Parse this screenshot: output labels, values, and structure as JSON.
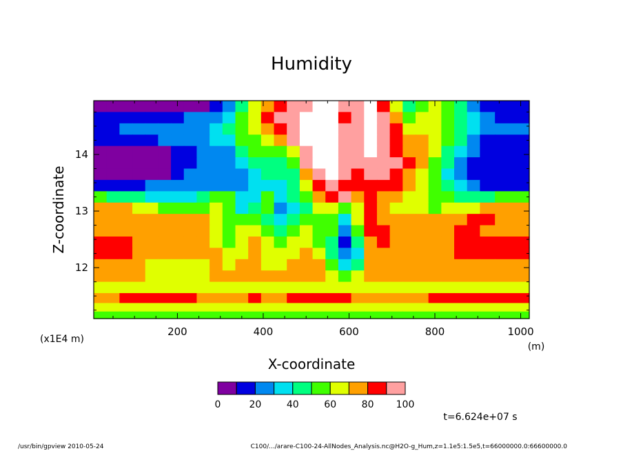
{
  "chart_data": {
    "type": "heatmap",
    "title": "Humidity",
    "xlabel": "X-coordinate",
    "ylabel": "Z-coordinate",
    "x_unit": "(m)",
    "y_unit": "(x1E4 m)",
    "xlim": [
      5,
      1020
    ],
    "ylim": [
      11.1,
      14.95
    ],
    "x_ticks": [
      200,
      400,
      600,
      800,
      1000
    ],
    "y_ticks": [
      12,
      13,
      14
    ],
    "x_tick_labels": [
      "200",
      "400",
      "600",
      "800",
      "1000"
    ],
    "y_tick_labels": [
      "12",
      "13",
      "14"
    ],
    "colorbar": {
      "levels": [
        0,
        10,
        20,
        30,
        40,
        50,
        60,
        70,
        80,
        90,
        100
      ],
      "labels": [
        "0",
        "20",
        "40",
        "60",
        "80",
        "100"
      ],
      "label_values": [
        0,
        20,
        40,
        60,
        80,
        100
      ],
      "colors": [
        "#7f00a0",
        "#0000e0",
        "#0088f0",
        "#00e0f0",
        "#00ff80",
        "#40ff00",
        "#e0ff00",
        "#ffa000",
        "#ff0000",
        "#ffa0a0"
      ],
      "above_color": "#ffffff"
    },
    "z_rows": [
      {
        "z": 14.85,
        "values": [
          5,
          5,
          5,
          5,
          5,
          5,
          5,
          5,
          5,
          12,
          25,
          45,
          65,
          75,
          85,
          95,
          98,
          100,
          100,
          90,
          98,
          100,
          85,
          60,
          45,
          55,
          60,
          55,
          45,
          25,
          15,
          12
        ]
      },
      {
        "z": 14.65,
        "values": [
          12,
          12,
          15,
          18,
          15,
          15,
          18,
          20,
          22,
          25,
          35,
          55,
          65,
          80,
          90,
          95,
          100,
          100,
          100,
          85,
          95,
          100,
          90,
          70,
          55,
          60,
          65,
          55,
          45,
          35,
          25,
          15
        ]
      },
      {
        "z": 14.45,
        "values": [
          18,
          18,
          20,
          22,
          22,
          22,
          25,
          25,
          28,
          32,
          40,
          55,
          60,
          75,
          85,
          95,
          100,
          100,
          100,
          90,
          95,
          100,
          92,
          80,
          65,
          65,
          68,
          55,
          45,
          35,
          25,
          20
        ]
      },
      {
        "z": 14.25,
        "values": [
          15,
          15,
          15,
          18,
          18,
          20,
          22,
          25,
          28,
          30,
          38,
          50,
          55,
          65,
          75,
          90,
          100,
          100,
          100,
          95,
          98,
          100,
          95,
          85,
          75,
          70,
          65,
          55,
          40,
          25,
          18,
          15
        ]
      },
      {
        "z": 14.05,
        "values": [
          8,
          8,
          5,
          5,
          5,
          5,
          10,
          18,
          22,
          22,
          25,
          40,
          50,
          55,
          55,
          65,
          95,
          100,
          100,
          95,
          98,
          100,
          95,
          85,
          75,
          70,
          60,
          45,
          30,
          20,
          15,
          12
        ]
      },
      {
        "z": 13.85,
        "values": [
          5,
          5,
          5,
          5,
          5,
          5,
          12,
          18,
          22,
          22,
          25,
          30,
          40,
          45,
          45,
          55,
          90,
          100,
          100,
          95,
          90,
          98,
          95,
          90,
          80,
          70,
          55,
          40,
          28,
          18,
          15,
          12
        ]
      },
      {
        "z": 13.65,
        "values": [
          5,
          5,
          5,
          5,
          5,
          8,
          15,
          20,
          22,
          22,
          25,
          25,
          35,
          40,
          40,
          45,
          75,
          95,
          100,
          92,
          85,
          92,
          90,
          85,
          75,
          65,
          52,
          38,
          25,
          15,
          12,
          10
        ]
      },
      {
        "z": 13.45,
        "values": [
          15,
          15,
          15,
          18,
          20,
          20,
          22,
          22,
          25,
          25,
          28,
          28,
          30,
          32,
          35,
          45,
          62,
          80,
          95,
          88,
          80,
          85,
          85,
          80,
          70,
          60,
          50,
          40,
          30,
          20,
          15,
          15
        ]
      },
      {
        "z": 13.25,
        "values": [
          52,
          48,
          45,
          40,
          38,
          35,
          32,
          32,
          40,
          55,
          55,
          35,
          38,
          55,
          30,
          40,
          55,
          70,
          80,
          90,
          75,
          82,
          78,
          72,
          68,
          60,
          55,
          50,
          48,
          48,
          45,
          52
        ]
      },
      {
        "z": 13.05,
        "values": [
          75,
          75,
          70,
          65,
          60,
          55,
          50,
          50,
          58,
          60,
          52,
          35,
          40,
          52,
          22,
          35,
          48,
          62,
          65,
          55,
          62,
          80,
          72,
          68,
          62,
          60,
          58,
          60,
          62,
          68,
          72,
          75
        ]
      },
      {
        "z": 12.85,
        "values": [
          78,
          78,
          75,
          75,
          72,
          72,
          70,
          70,
          72,
          65,
          55,
          50,
          52,
          45,
          35,
          45,
          52,
          58,
          58,
          35,
          62,
          80,
          75,
          72,
          70,
          70,
          72,
          75,
          78,
          80,
          80,
          78
        ]
      },
      {
        "z": 12.65,
        "values": [
          75,
          75,
          75,
          72,
          72,
          72,
          72,
          75,
          70,
          68,
          55,
          62,
          68,
          58,
          45,
          55,
          62,
          58,
          50,
          22,
          50,
          82,
          80,
          75,
          72,
          72,
          75,
          78,
          80,
          80,
          78,
          75
        ]
      },
      {
        "z": 12.45,
        "values": [
          85,
          88,
          85,
          78,
          72,
          72,
          72,
          72,
          70,
          68,
          58,
          65,
          70,
          60,
          55,
          62,
          65,
          58,
          45,
          15,
          40,
          78,
          80,
          75,
          72,
          72,
          72,
          78,
          85,
          88,
          85,
          82
        ]
      },
      {
        "z": 12.25,
        "values": [
          85,
          85,
          82,
          78,
          72,
          72,
          72,
          70,
          70,
          72,
          62,
          68,
          72,
          62,
          62,
          68,
          72,
          62,
          45,
          20,
          38,
          72,
          78,
          72,
          72,
          72,
          72,
          72,
          82,
          85,
          82,
          80
        ]
      },
      {
        "z": 12.05,
        "values": [
          75,
          75,
          72,
          72,
          68,
          68,
          65,
          65,
          65,
          78,
          68,
          70,
          72,
          68,
          68,
          70,
          75,
          70,
          50,
          30,
          45,
          70,
          72,
          70,
          70,
          70,
          70,
          72,
          75,
          75,
          72,
          72
        ]
      },
      {
        "z": 11.85,
        "values": [
          72,
          72,
          70,
          70,
          68,
          68,
          65,
          65,
          65,
          72,
          70,
          70,
          72,
          70,
          70,
          70,
          72,
          70,
          60,
          50,
          62,
          70,
          70,
          70,
          70,
          70,
          72,
          72,
          72,
          72,
          72,
          72
        ]
      },
      {
        "z": 11.65,
        "values": [
          62,
          62,
          62,
          62,
          68,
          68,
          65,
          65,
          62,
          62,
          62,
          62,
          62,
          62,
          62,
          62,
          62,
          62,
          62,
          68,
          62,
          62,
          62,
          62,
          62,
          62,
          62,
          62,
          62,
          62,
          62,
          62
        ]
      },
      {
        "z": 11.45,
        "values": [
          72,
          75,
          82,
          85,
          85,
          85,
          85,
          82,
          75,
          70,
          72,
          78,
          82,
          78,
          75,
          82,
          85,
          85,
          82,
          80,
          72,
          70,
          70,
          72,
          75,
          78,
          82,
          82,
          85,
          85,
          85,
          82
        ]
      },
      {
        "z": 11.3,
        "values": [
          62,
          62,
          62,
          62,
          62,
          62,
          62,
          62,
          62,
          62,
          62,
          62,
          62,
          62,
          62,
          62,
          62,
          62,
          62,
          62,
          62,
          62,
          62,
          62,
          62,
          62,
          62,
          62,
          62,
          62,
          62,
          62
        ]
      },
      {
        "z": 11.15,
        "values": [
          55,
          55,
          55,
          55,
          55,
          55,
          55,
          55,
          55,
          55,
          55,
          55,
          55,
          55,
          55,
          55,
          55,
          55,
          55,
          55,
          55,
          55,
          55,
          55,
          55,
          55,
          55,
          55,
          55,
          55,
          55,
          55
        ]
      }
    ],
    "x_bins": [
      20,
      50,
      80,
      110,
      140,
      170,
      200,
      230,
      260,
      290,
      320,
      350,
      380,
      410,
      440,
      470,
      500,
      530,
      560,
      590,
      620,
      650,
      680,
      710,
      740,
      770,
      800,
      830,
      860,
      890,
      920,
      960
    ]
  },
  "footer": {
    "left": "/usr/bin/gpview   2010-05-24",
    "right": "C100/.../arare-C100-24-AllNodes_Analysis.nc@H2O-g_Hum,z=1.1e5:1.5e5,t=66000000.0:66600000.0",
    "time": "t=6.624e+07 s"
  }
}
